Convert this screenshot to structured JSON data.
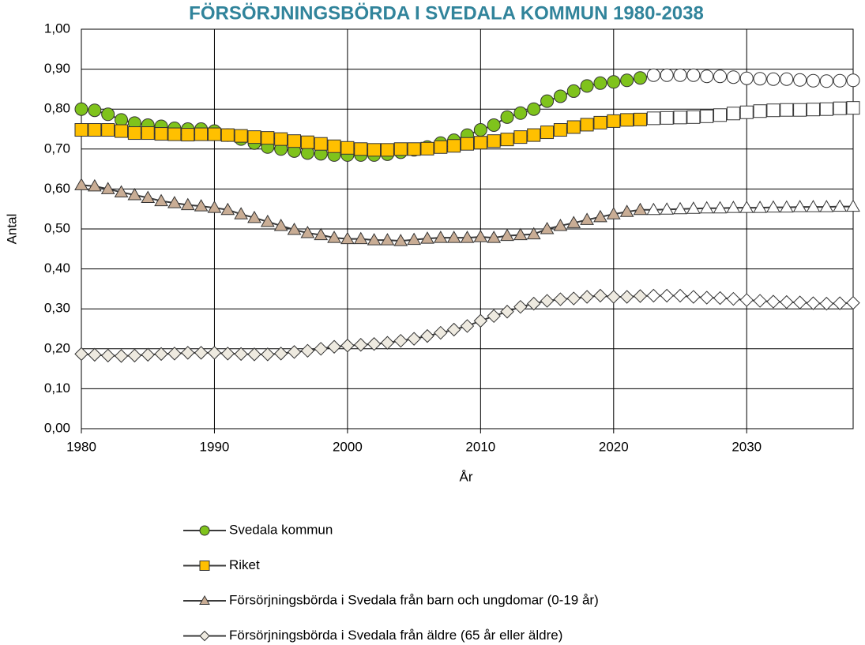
{
  "chart_data": {
    "type": "line",
    "title": "FÖRSÖRJNINGSBÖRDA I SVEDALA KOMMUN 1980-2038",
    "x_label": "År",
    "y_label": "Antal",
    "x": [
      1980,
      1981,
      1982,
      1983,
      1984,
      1985,
      1986,
      1987,
      1988,
      1989,
      1990,
      1991,
      1992,
      1993,
      1994,
      1995,
      1996,
      1997,
      1998,
      1999,
      2000,
      2001,
      2002,
      2003,
      2004,
      2005,
      2006,
      2007,
      2008,
      2009,
      2010,
      2011,
      2012,
      2013,
      2014,
      2015,
      2016,
      2017,
      2018,
      2019,
      2020,
      2021,
      2022,
      2023,
      2024,
      2025,
      2026,
      2027,
      2028,
      2029,
      2030,
      2031,
      2032,
      2033,
      2034,
      2035,
      2036,
      2037,
      2038
    ],
    "xlim": [
      1980,
      2038
    ],
    "xticks": [
      1980,
      1990,
      2000,
      2010,
      2020,
      2030
    ],
    "ylim": [
      0,
      1
    ],
    "yticks": [
      {
        "value": 0,
        "label": "0,00"
      },
      {
        "value": 0.1,
        "label": "0,10"
      },
      {
        "value": 0.2,
        "label": "0,20"
      },
      {
        "value": 0.3,
        "label": "0,30"
      },
      {
        "value": 0.4,
        "label": "0,40"
      },
      {
        "value": 0.5,
        "label": "0,50"
      },
      {
        "value": 0.6,
        "label": "0,60"
      },
      {
        "value": 0.7,
        "label": "0,70"
      },
      {
        "value": 0.8,
        "label": "0,80"
      },
      {
        "value": 0.9,
        "label": "0,90"
      },
      {
        "value": 1,
        "label": "1,00"
      }
    ],
    "grid": true,
    "line_color": "#3a3a3a",
    "forecast_start": 2023,
    "forecast_fill": "#ffffff",
    "series": [
      {
        "name": "Svedala kommun",
        "color": "#7fc31c",
        "marker": "circle",
        "values": [
          0.8,
          0.797,
          0.787,
          0.773,
          0.765,
          0.76,
          0.757,
          0.752,
          0.75,
          0.75,
          0.745,
          0.735,
          0.725,
          0.715,
          0.705,
          0.7,
          0.695,
          0.69,
          0.688,
          0.685,
          0.685,
          0.685,
          0.685,
          0.687,
          0.692,
          0.698,
          0.705,
          0.715,
          0.722,
          0.735,
          0.748,
          0.76,
          0.78,
          0.79,
          0.8,
          0.82,
          0.832,
          0.845,
          0.858,
          0.865,
          0.868,
          0.872,
          0.878,
          0.885,
          0.885,
          0.885,
          0.885,
          0.882,
          0.882,
          0.88,
          0.877,
          0.876,
          0.875,
          0.875,
          0.873,
          0.871,
          0.87,
          0.871,
          0.872
        ]
      },
      {
        "name": "Riket",
        "color": "#ffc000",
        "marker": "square",
        "values": [
          0.748,
          0.748,
          0.748,
          0.745,
          0.74,
          0.74,
          0.738,
          0.737,
          0.736,
          0.737,
          0.737,
          0.735,
          0.733,
          0.73,
          0.728,
          0.725,
          0.72,
          0.717,
          0.713,
          0.707,
          0.703,
          0.7,
          0.698,
          0.698,
          0.7,
          0.7,
          0.701,
          0.705,
          0.708,
          0.713,
          0.716,
          0.72,
          0.724,
          0.73,
          0.735,
          0.742,
          0.748,
          0.755,
          0.761,
          0.766,
          0.77,
          0.773,
          0.774,
          0.777,
          0.778,
          0.779,
          0.78,
          0.782,
          0.785,
          0.789,
          0.792,
          0.795,
          0.797,
          0.798,
          0.798,
          0.799,
          0.8,
          0.802,
          0.803
        ]
      },
      {
        "name": "Försörjningsbörda i Svedala från barn och ungdomar (0-19 år)",
        "color": "#c9ad95",
        "marker": "triangle",
        "values": [
          0.61,
          0.607,
          0.6,
          0.592,
          0.585,
          0.578,
          0.57,
          0.565,
          0.56,
          0.557,
          0.553,
          0.548,
          0.537,
          0.528,
          0.518,
          0.508,
          0.498,
          0.49,
          0.485,
          0.478,
          0.475,
          0.475,
          0.472,
          0.472,
          0.47,
          0.473,
          0.476,
          0.478,
          0.478,
          0.478,
          0.48,
          0.478,
          0.483,
          0.485,
          0.487,
          0.5,
          0.508,
          0.515,
          0.523,
          0.53,
          0.537,
          0.543,
          0.548,
          0.548,
          0.549,
          0.55,
          0.551,
          0.552,
          0.552,
          0.553,
          0.553,
          0.553,
          0.554,
          0.554,
          0.555,
          0.555,
          0.555,
          0.556,
          0.556
        ]
      },
      {
        "name": "Försörjningsbörda i Svedala från äldre (65 år eller äldre)",
        "color": "#eeeae0",
        "marker": "diamond",
        "values": [
          0.187,
          0.185,
          0.183,
          0.182,
          0.183,
          0.185,
          0.187,
          0.188,
          0.19,
          0.19,
          0.19,
          0.188,
          0.187,
          0.186,
          0.186,
          0.188,
          0.192,
          0.195,
          0.2,
          0.205,
          0.208,
          0.21,
          0.212,
          0.215,
          0.22,
          0.225,
          0.232,
          0.24,
          0.248,
          0.257,
          0.27,
          0.282,
          0.293,
          0.305,
          0.313,
          0.32,
          0.324,
          0.326,
          0.33,
          0.333,
          0.33,
          0.33,
          0.332,
          0.333,
          0.333,
          0.333,
          0.33,
          0.328,
          0.327,
          0.325,
          0.322,
          0.32,
          0.318,
          0.317,
          0.316,
          0.314,
          0.313,
          0.314,
          0.315
        ]
      }
    ]
  }
}
